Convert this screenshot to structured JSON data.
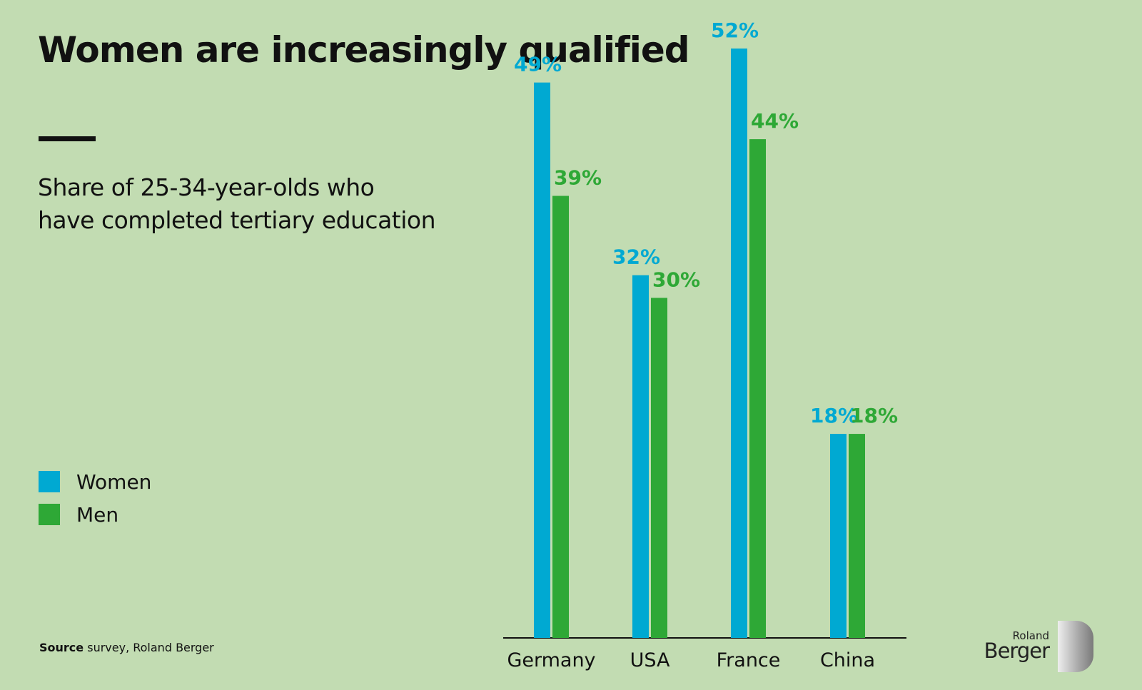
{
  "title": "Women are increasingly qualified",
  "subtitle": "Share of 25-34-year-olds who have completed tertiary education",
  "legend": [
    {
      "label": "Women",
      "color": "#00a9d2"
    },
    {
      "label": "Men",
      "color": "#2ea836"
    }
  ],
  "source": {
    "label": "Source",
    "text": "survey, Roland Berger"
  },
  "logo": {
    "line1": "Roland",
    "line2": "Berger"
  },
  "chart_data": {
    "type": "bar",
    "title": "Women are increasingly qualified",
    "subtitle": "Share of 25-34-year-olds who have completed tertiary education",
    "xlabel": "",
    "ylabel": "",
    "categories": [
      "Germany",
      "USA",
      "France",
      "China"
    ],
    "series": [
      {
        "name": "Women",
        "color": "#00a9d2",
        "values": [
          49,
          32,
          52,
          18
        ]
      },
      {
        "name": "Men",
        "color": "#2ea836",
        "values": [
          39,
          30,
          44,
          18
        ]
      }
    ],
    "value_format": "{v}%",
    "ylim": [
      0,
      52
    ],
    "grid": false,
    "legend_position": "left"
  }
}
